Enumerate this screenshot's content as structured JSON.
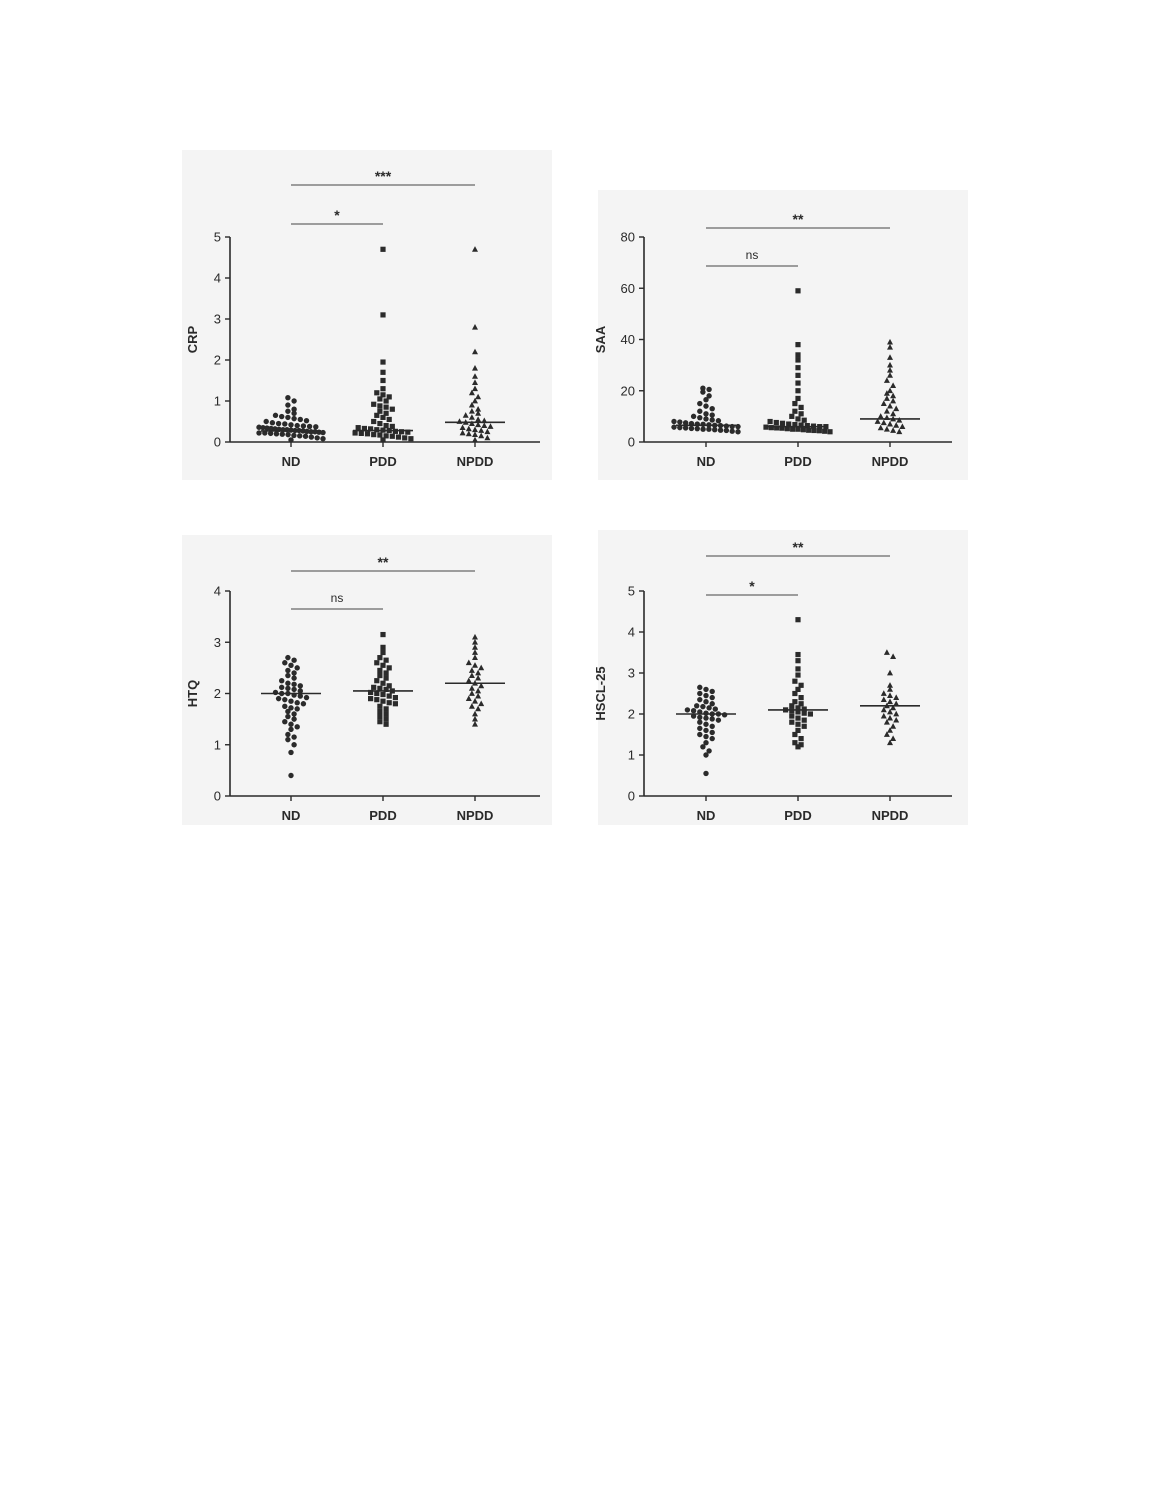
{
  "chart_data": [
    {
      "type": "scatter",
      "ylabel": "CRP",
      "ylim": [
        0,
        5
      ],
      "yticks": [
        "0",
        "1",
        "2",
        "3",
        "4",
        "5"
      ],
      "categories": [
        "ND",
        "PDD",
        "NPDD"
      ],
      "markers": [
        "circle",
        "square",
        "triangle"
      ],
      "medians": [
        0.27,
        0.28,
        0.48
      ],
      "series": [
        {
          "values": [
            0.05,
            0.08,
            0.1,
            0.12,
            0.14,
            0.15,
            0.16,
            0.18,
            0.19,
            0.2,
            0.21,
            0.22,
            0.22,
            0.23,
            0.24,
            0.25,
            0.25,
            0.26,
            0.27,
            0.28,
            0.28,
            0.29,
            0.3,
            0.3,
            0.31,
            0.32,
            0.33,
            0.34,
            0.35,
            0.36,
            0.37,
            0.38,
            0.39,
            0.4,
            0.42,
            0.44,
            0.45,
            0.47,
            0.5,
            0.52,
            0.55,
            0.57,
            0.6,
            0.62,
            0.65,
            0.7,
            0.75,
            0.8,
            0.9,
            1.0,
            1.08
          ]
        },
        {
          "values": [
            0.05,
            0.08,
            0.1,
            0.12,
            0.14,
            0.15,
            0.17,
            0.18,
            0.2,
            0.21,
            0.22,
            0.24,
            0.25,
            0.26,
            0.28,
            0.29,
            0.3,
            0.32,
            0.33,
            0.35,
            0.38,
            0.4,
            0.45,
            0.5,
            0.55,
            0.6,
            0.65,
            0.7,
            0.75,
            0.8,
            0.85,
            0.88,
            0.92,
            1.0,
            1.05,
            1.1,
            1.15,
            1.2,
            1.3,
            1.5,
            1.7,
            1.95,
            3.1,
            4.7
          ]
        },
        {
          "values": [
            0.05,
            0.1,
            0.15,
            0.18,
            0.2,
            0.22,
            0.25,
            0.28,
            0.3,
            0.32,
            0.35,
            0.38,
            0.4,
            0.42,
            0.45,
            0.48,
            0.5,
            0.52,
            0.55,
            0.6,
            0.65,
            0.7,
            0.75,
            0.8,
            0.9,
            1.0,
            1.1,
            1.2,
            1.3,
            1.45,
            1.6,
            1.8,
            2.2,
            2.8,
            4.7
          ]
        }
      ],
      "brackets": [
        {
          "from": "ND",
          "to": "PDD",
          "label": "*",
          "level": 0
        },
        {
          "from": "ND",
          "to": "NPDD",
          "label": "***",
          "level": 1
        }
      ]
    },
    {
      "type": "scatter",
      "ylabel": "SAA",
      "ylim": [
        0,
        80
      ],
      "yticks": [
        "0",
        "20",
        "40",
        "60",
        "80"
      ],
      "categories": [
        "ND",
        "PDD",
        "NPDD"
      ],
      "markers": [
        "circle",
        "square",
        "triangle"
      ],
      "medians": [
        6.5,
        6.0,
        9.0
      ],
      "series": [
        {
          "values": [
            4.0,
            4.2,
            4.5,
            4.6,
            4.8,
            5.0,
            5.0,
            5.2,
            5.3,
            5.5,
            5.6,
            5.8,
            6.0,
            6.0,
            6.2,
            6.4,
            6.5,
            6.7,
            6.9,
            7.0,
            7.2,
            7.5,
            7.8,
            8.0,
            8.3,
            8.6,
            9.0,
            9.5,
            10.0,
            10.5,
            11.0,
            12.0,
            13.0,
            14.0,
            15.0,
            16.5,
            18.0,
            19.5,
            20.5,
            21.0
          ]
        },
        {
          "values": [
            4.0,
            4.2,
            4.4,
            4.5,
            4.6,
            4.8,
            5.0,
            5.0,
            5.2,
            5.4,
            5.5,
            5.6,
            5.8,
            6.0,
            6.0,
            6.2,
            6.4,
            6.6,
            6.8,
            7.0,
            7.3,
            7.6,
            8.0,
            8.5,
            9.0,
            10.0,
            11.0,
            12.0,
            13.5,
            15.0,
            17.0,
            20.0,
            23.0,
            26.0,
            29.0,
            32.0,
            34.0,
            38.0,
            59.0
          ]
        },
        {
          "values": [
            4.0,
            4.5,
            5.0,
            5.5,
            6.0,
            6.5,
            7.0,
            7.5,
            8.0,
            8.5,
            9.0,
            9.5,
            10.0,
            11.0,
            12.0,
            13.0,
            14.0,
            15.0,
            16.0,
            17.0,
            18.0,
            19.0,
            20.0,
            22.0,
            24.0,
            26.0,
            28.0,
            30.0,
            33.0,
            37.0,
            39.0
          ]
        }
      ],
      "brackets": [
        {
          "from": "ND",
          "to": "PDD",
          "label": "ns",
          "level": 0
        },
        {
          "from": "ND",
          "to": "NPDD",
          "label": "**",
          "level": 1
        }
      ]
    },
    {
      "type": "scatter",
      "ylabel": "HTQ",
      "ylim": [
        0,
        4
      ],
      "yticks": [
        "0",
        "1",
        "2",
        "3",
        "4"
      ],
      "categories": [
        "ND",
        "PDD",
        "NPDD"
      ],
      "markers": [
        "circle",
        "square",
        "triangle"
      ],
      "medians": [
        2.0,
        2.05,
        2.2
      ],
      "series": [
        {
          "values": [
            0.4,
            0.85,
            1.0,
            1.1,
            1.15,
            1.2,
            1.3,
            1.35,
            1.4,
            1.45,
            1.5,
            1.55,
            1.6,
            1.65,
            1.7,
            1.72,
            1.75,
            1.8,
            1.82,
            1.85,
            1.88,
            1.9,
            1.92,
            1.95,
            1.97,
            2.0,
            2.0,
            2.02,
            2.05,
            2.08,
            2.1,
            2.12,
            2.15,
            2.18,
            2.2,
            2.25,
            2.3,
            2.35,
            2.4,
            2.45,
            2.5,
            2.55,
            2.6,
            2.65,
            2.7
          ]
        },
        {
          "values": [
            1.4,
            1.45,
            1.5,
            1.55,
            1.6,
            1.65,
            1.7,
            1.75,
            1.8,
            1.82,
            1.85,
            1.88,
            1.9,
            1.92,
            1.95,
            1.98,
            2.0,
            2.02,
            2.05,
            2.08,
            2.1,
            2.12,
            2.15,
            2.2,
            2.25,
            2.3,
            2.35,
            2.4,
            2.45,
            2.5,
            2.55,
            2.6,
            2.65,
            2.7,
            2.8,
            2.9,
            3.15
          ]
        },
        {
          "values": [
            1.4,
            1.5,
            1.6,
            1.7,
            1.75,
            1.8,
            1.85,
            1.9,
            1.95,
            2.0,
            2.05,
            2.1,
            2.15,
            2.2,
            2.25,
            2.3,
            2.35,
            2.4,
            2.45,
            2.5,
            2.55,
            2.6,
            2.7,
            2.8,
            2.9,
            3.0,
            3.1
          ]
        }
      ],
      "brackets": [
        {
          "from": "ND",
          "to": "PDD",
          "label": "ns",
          "level": 0
        },
        {
          "from": "ND",
          "to": "NPDD",
          "label": "**",
          "level": 1
        }
      ]
    },
    {
      "type": "scatter",
      "ylabel": "HSCL-25",
      "ylim": [
        0,
        5
      ],
      "yticks": [
        "0",
        "1",
        "2",
        "3",
        "4",
        "5"
      ],
      "categories": [
        "ND",
        "PDD",
        "NPDD"
      ],
      "markers": [
        "circle",
        "square",
        "triangle"
      ],
      "medians": [
        2.0,
        2.1,
        2.2
      ],
      "series": [
        {
          "values": [
            0.55,
            1.0,
            1.1,
            1.2,
            1.3,
            1.4,
            1.45,
            1.5,
            1.55,
            1.6,
            1.65,
            1.7,
            1.75,
            1.8,
            1.85,
            1.88,
            1.9,
            1.92,
            1.95,
            1.98,
            2.0,
            2.0,
            2.02,
            2.05,
            2.08,
            2.1,
            2.12,
            2.15,
            2.18,
            2.2,
            2.25,
            2.3,
            2.35,
            2.4,
            2.45,
            2.5,
            2.55,
            2.6,
            2.65
          ]
        },
        {
          "values": [
            1.2,
            1.25,
            1.3,
            1.4,
            1.5,
            1.6,
            1.7,
            1.75,
            1.8,
            1.85,
            1.9,
            1.95,
            2.0,
            2.02,
            2.05,
            2.08,
            2.1,
            2.12,
            2.15,
            2.2,
            2.25,
            2.3,
            2.4,
            2.5,
            2.6,
            2.7,
            2.8,
            2.95,
            3.1,
            3.3,
            3.45,
            4.3
          ]
        },
        {
          "values": [
            1.3,
            1.4,
            1.5,
            1.6,
            1.7,
            1.8,
            1.85,
            1.9,
            1.95,
            2.0,
            2.05,
            2.1,
            2.15,
            2.2,
            2.25,
            2.3,
            2.35,
            2.4,
            2.45,
            2.5,
            2.6,
            2.7,
            3.0,
            3.4,
            3.5
          ]
        }
      ],
      "brackets": [
        {
          "from": "ND",
          "to": "PDD",
          "label": "*",
          "level": 0
        },
        {
          "from": "ND",
          "to": "NPDD",
          "label": "**",
          "level": 1
        }
      ]
    }
  ]
}
